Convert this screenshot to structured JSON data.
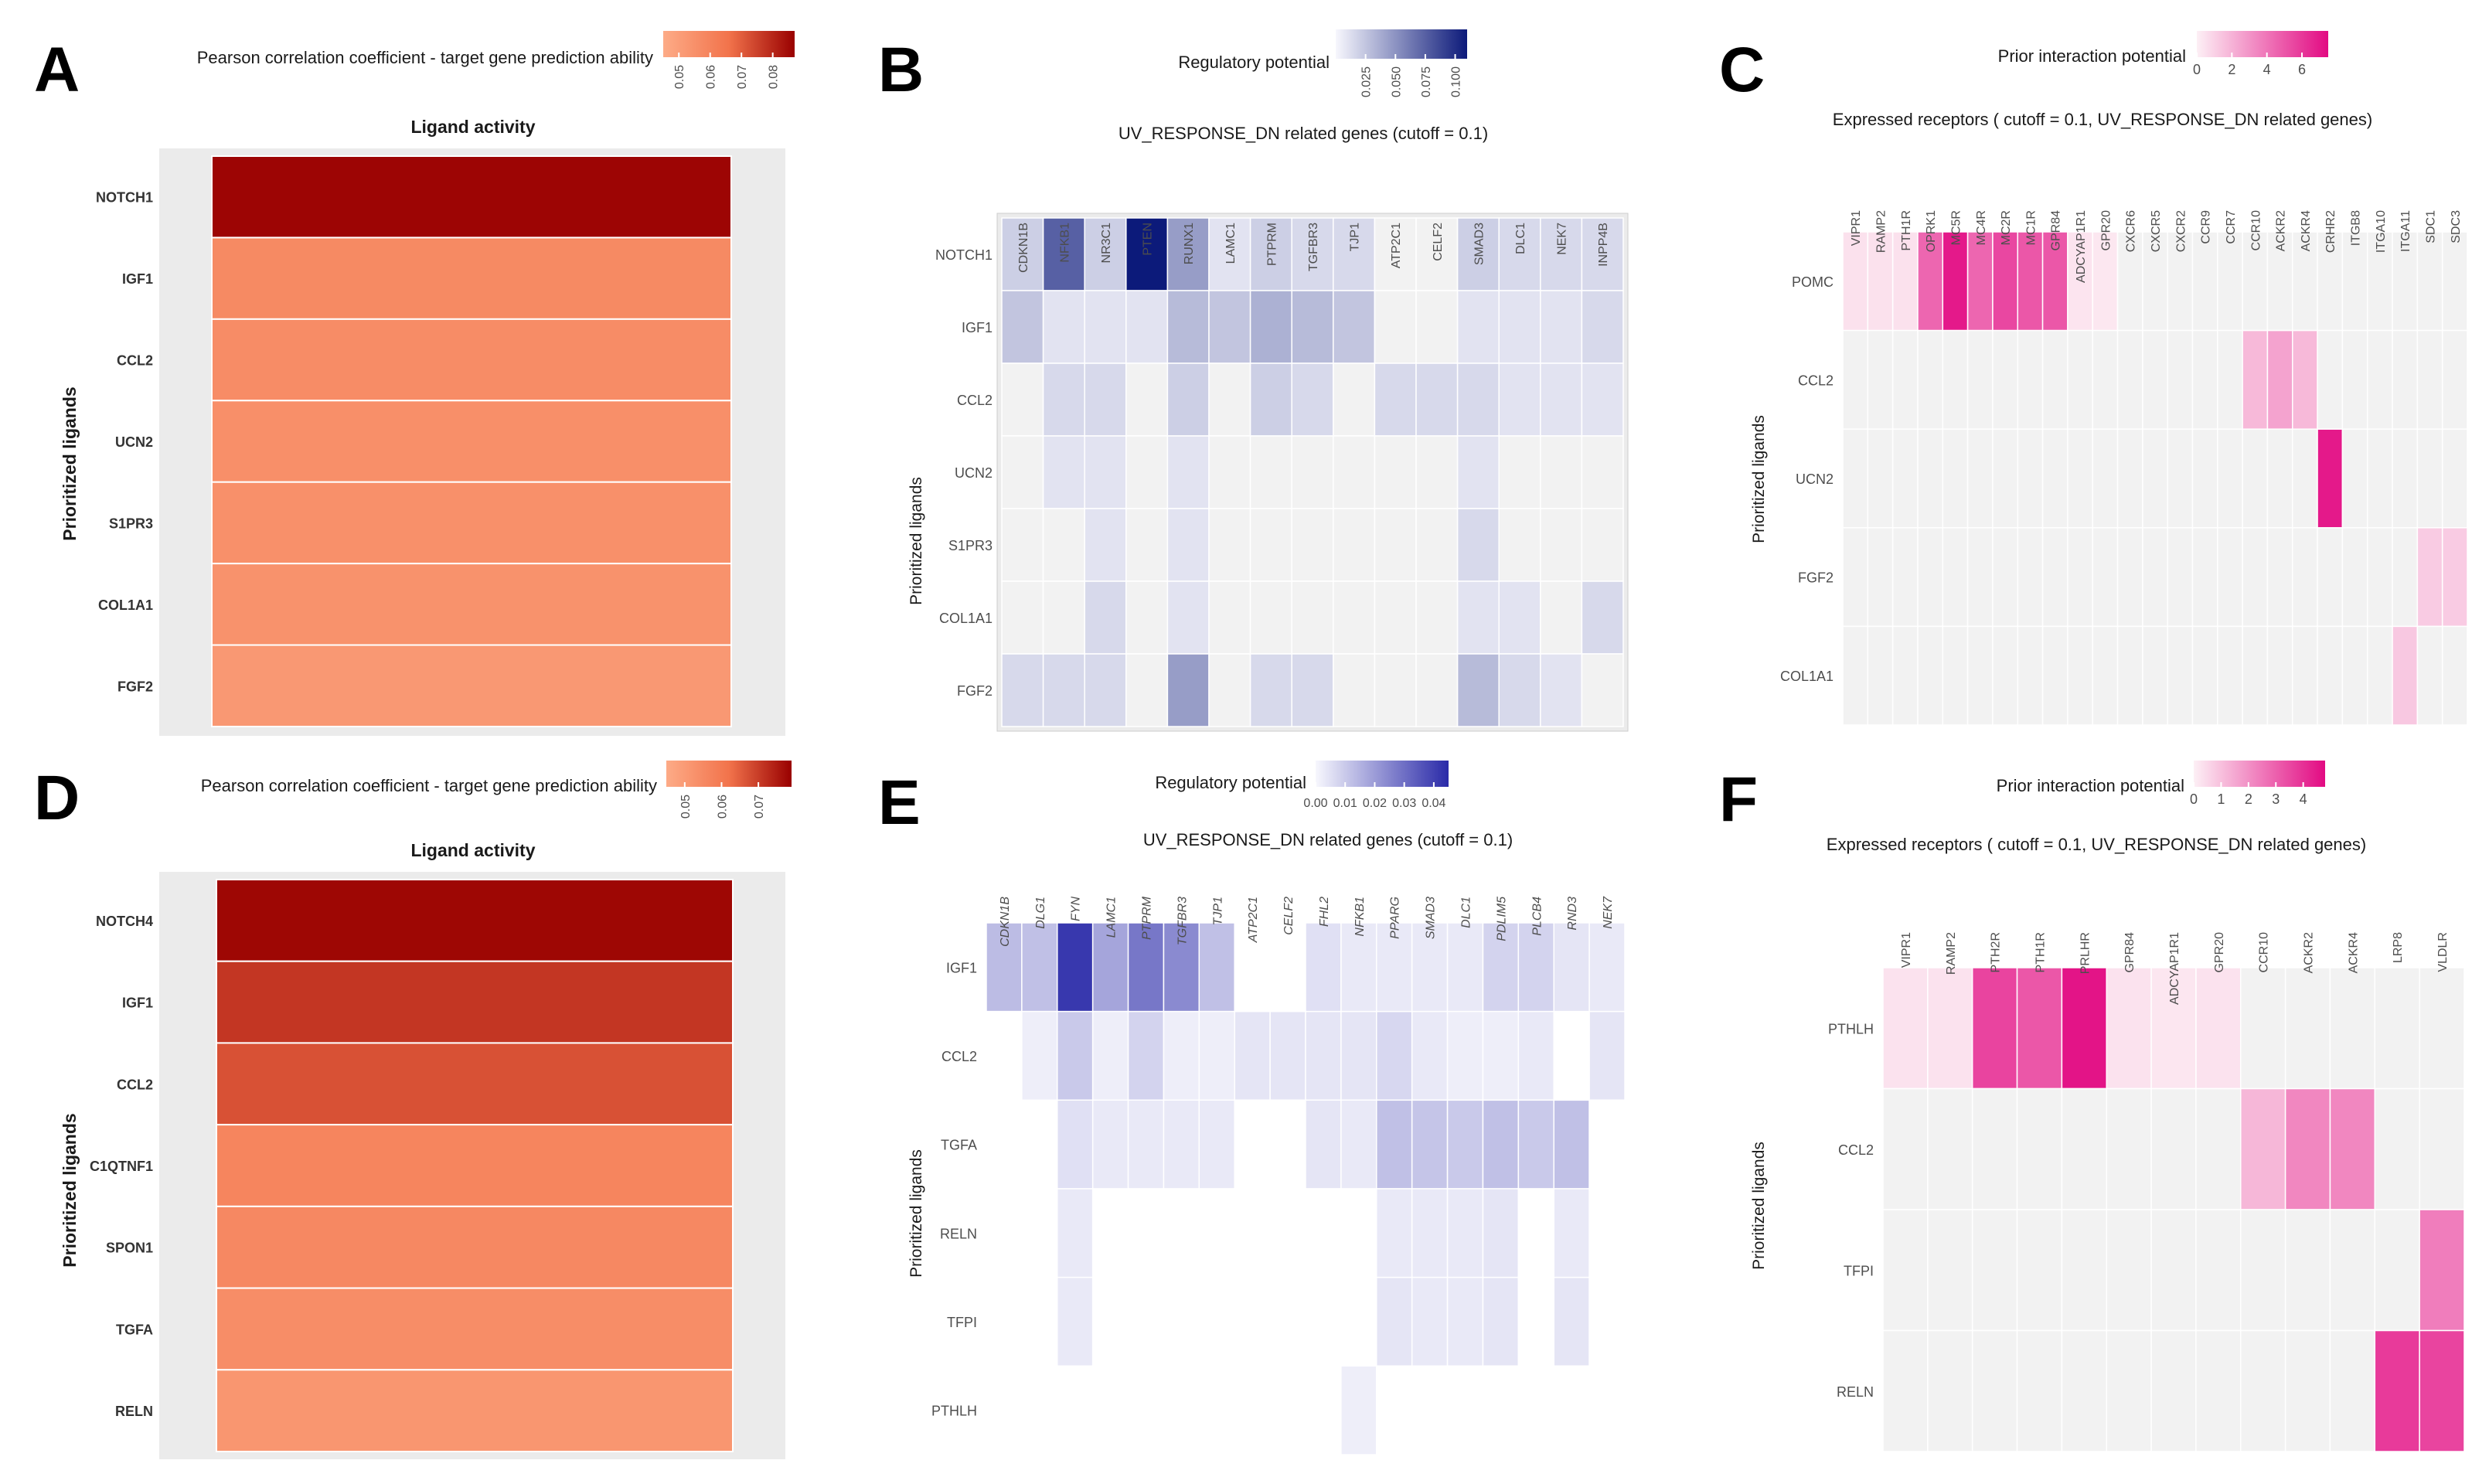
{
  "figure": {
    "panel_letters": [
      "A",
      "B",
      "C",
      "D",
      "E",
      "F"
    ]
  },
  "chart_data": [
    {
      "panel": "A",
      "type": "heatmap",
      "title": "Ligand activity",
      "ylabel": "Prioritized ligands",
      "legend_title": "Pearson correlation coefficient - target gene prediction ability",
      "legend_ticks": [
        "0.05",
        "0.06",
        "0.07",
        "0.08"
      ],
      "legend_range": [
        0.045,
        0.087
      ],
      "colors": {
        "low": "#fdab87",
        "mid": "#f2734b",
        "high": "#990000",
        "panel_bg": "#ebebeb"
      },
      "rows": [
        "NOTCH1",
        "IGF1",
        "CCL2",
        "UCN2",
        "S1PR3",
        "COL1A1",
        "FGF2"
      ],
      "values": [
        0.086,
        0.0575,
        0.0565,
        0.0555,
        0.055,
        0.0545,
        0.052
      ]
    },
    {
      "panel": "B",
      "type": "heatmap",
      "title": "UV_RESPONSE_DN related genes (cutoff = 0.1)",
      "ylabel": "Prioritized ligands",
      "legend_title": "Regulatory potential",
      "legend_ticks": [
        "0.025",
        "0.050",
        "0.075",
        "0.100"
      ],
      "legend_range": [
        0,
        0.11
      ],
      "colors": {
        "low": "#f7f7fd",
        "high": "#0c1a7a",
        "na": "#f2f2f2"
      },
      "columns": [
        "CDKN1B",
        "NFKB1",
        "NR3C1",
        "PTEN",
        "RUNX1",
        "LAMC1",
        "PTPRM",
        "TGFBR3",
        "TJP1",
        "ATP2C1",
        "CELF2",
        "SMAD3",
        "DLC1",
        "NEK7",
        "INPP4B"
      ],
      "rows": [
        "NOTCH1",
        "IGF1",
        "CCL2",
        "UCN2",
        "S1PR3",
        "COL1A1",
        "FGF2"
      ],
      "values": [
        [
          0.02,
          0.075,
          0.02,
          0.11,
          0.045,
          0.01,
          0.02,
          0.015,
          0.015,
          0,
          0,
          0.02,
          0.015,
          0.015,
          0.015
        ],
        [
          0.025,
          0.01,
          0.01,
          0.01,
          0.03,
          0.025,
          0.035,
          0.03,
          0.025,
          0,
          0,
          0.01,
          0.01,
          0.01,
          0.015
        ],
        [
          0,
          0.015,
          0.015,
          0,
          0.02,
          0,
          0.02,
          0.015,
          0,
          0.015,
          0.015,
          0.015,
          0.01,
          0.01,
          0.01
        ],
        [
          0,
          0.01,
          0.01,
          0,
          0.01,
          0,
          0,
          0,
          0,
          0,
          0,
          0.01,
          0,
          0,
          0
        ],
        [
          0,
          0,
          0.01,
          0,
          0.01,
          0,
          0,
          0,
          0,
          0,
          0,
          0.015,
          0,
          0,
          0
        ],
        [
          0,
          0,
          0.015,
          0,
          0.01,
          0,
          0,
          0,
          0,
          0,
          0,
          0.01,
          0.01,
          0,
          0.015
        ],
        [
          0.015,
          0.015,
          0.015,
          0,
          0.045,
          0,
          0.015,
          0.015,
          0,
          0,
          0,
          0.03,
          0.015,
          0.01,
          0
        ]
      ]
    },
    {
      "panel": "C",
      "type": "heatmap",
      "title": "Expressed receptors ( cutoff = 0.1, UV_RESPONSE_DN related genes)",
      "ylabel": "Prioritized ligands",
      "legend_title": "Prior interaction potential",
      "legend_ticks": [
        "0",
        "2",
        "4",
        "6"
      ],
      "legend_range": [
        0,
        7.5
      ],
      "colors": {
        "low": "#fdf0f5",
        "high": "#e20a82",
        "na": "#f2f2f2"
      },
      "columns": [
        "VIPR1",
        "RAMP2",
        "PTH1R",
        "OPRK1",
        "MC5R",
        "MC4R",
        "MC2R",
        "MC1R",
        "GPR84",
        "ADCYAP1R1",
        "GPR20",
        "CXCR6",
        "CXCR5",
        "CXCR2",
        "CCR9",
        "CCR7",
        "CCR10",
        "ACKR2",
        "ACKR4",
        "CRHR2",
        "ITGB8",
        "ITGA10",
        "ITGA11",
        "SDC1",
        "SDC3"
      ],
      "rows": [
        "POMC",
        "CCL2",
        "UCN2",
        "FGF2",
        "COL1A1"
      ],
      "values": [
        [
          0.5,
          0.5,
          0.5,
          4.5,
          7.0,
          4.5,
          5.5,
          5.0,
          5.0,
          0.4,
          0.3,
          0,
          0,
          0,
          0,
          0,
          0,
          0,
          0,
          0,
          0,
          0,
          0,
          0,
          0
        ],
        [
          0,
          0,
          0,
          0,
          0,
          0,
          0,
          0,
          0,
          0,
          0,
          0,
          0,
          0,
          0,
          0,
          1.8,
          2.5,
          1.8,
          0,
          0,
          0,
          0,
          0,
          0
        ],
        [
          0,
          0,
          0,
          0,
          0,
          0,
          0,
          0,
          0,
          0,
          0,
          0,
          0,
          0,
          0,
          0,
          0,
          0,
          0,
          7.0,
          0,
          0,
          0,
          0,
          0
        ],
        [
          0,
          0,
          0,
          0,
          0,
          0,
          0,
          0,
          0,
          0,
          0,
          0,
          0,
          0,
          0,
          0,
          0,
          0,
          0,
          0,
          0,
          0,
          0,
          1.2,
          1.2
        ],
        [
          0,
          0,
          0,
          0,
          0,
          0,
          0,
          0,
          0,
          0,
          0,
          0,
          0,
          0,
          0,
          0,
          0,
          0,
          0,
          0,
          0,
          0,
          1.3,
          0,
          0
        ]
      ]
    },
    {
      "panel": "D",
      "type": "heatmap",
      "title": "Ligand activity",
      "ylabel": "Prioritized ligands",
      "legend_title": "Pearson correlation coefficient - target gene prediction ability",
      "legend_ticks": [
        "0.05",
        "0.06",
        "0.07"
      ],
      "legend_range": [
        0.045,
        0.079
      ],
      "colors": {
        "low": "#fdab87",
        "mid": "#f2734b",
        "high": "#990000",
        "panel_bg": "#ebebeb"
      },
      "rows": [
        "NOTCH4",
        "IGF1",
        "CCL2",
        "C1QTNF1",
        "SPON1",
        "TGFA",
        "RELN"
      ],
      "values": [
        0.078,
        0.071,
        0.067,
        0.0565,
        0.0555,
        0.054,
        0.0515
      ]
    },
    {
      "panel": "E",
      "type": "heatmap",
      "title": "UV_RESPONSE_DN related genes (cutoff = 0.1)",
      "ylabel": "Prioritized ligands",
      "legend_title": "Regulatory potential",
      "legend_ticks": [
        "0.00",
        "0.01",
        "0.02",
        "0.03",
        "0.04"
      ],
      "legend_range": [
        0,
        0.045
      ],
      "colors": {
        "low": "#f7f7fd",
        "high": "#2a2aa8",
        "na": "#ffffff"
      },
      "columns": [
        "CDKN1B",
        "DLG1",
        "FYN",
        "LAMC1",
        "PTPRM",
        "TGFBR3",
        "TJP1",
        "ATP2C1",
        "CELF2",
        "FHL2",
        "NFKB1",
        "PPARG",
        "SMAD3",
        "DLC1",
        "PDLIM5",
        "PLCB4",
        "RND3",
        "NEK7"
      ],
      "rows": [
        "IGF1",
        "CCL2",
        "TGFA",
        "RELN",
        "TFPI",
        "PTHLH"
      ],
      "values": [
        [
          0.013,
          0.012,
          0.042,
          0.018,
          0.028,
          0.024,
          0.012,
          0,
          0,
          0.005,
          0.003,
          0.003,
          0.003,
          0.003,
          0.008,
          0.008,
          0.004,
          0.003
        ],
        [
          0,
          0.002,
          0.01,
          0.002,
          0.008,
          0.002,
          0.002,
          0.004,
          0.004,
          0.004,
          0.004,
          0.007,
          0.003,
          0.002,
          0.002,
          0.003,
          0,
          0.004
        ],
        [
          0,
          0,
          0.005,
          0.003,
          0.003,
          0.003,
          0.003,
          0,
          0,
          0.004,
          0.003,
          0.012,
          0.011,
          0.01,
          0.012,
          0.01,
          0.012,
          0
        ],
        [
          0,
          0,
          0.003,
          0,
          0,
          0,
          0,
          0,
          0,
          0,
          0,
          0.003,
          0.003,
          0.003,
          0.004,
          0,
          0.003,
          0
        ],
        [
          0,
          0,
          0.003,
          0,
          0,
          0,
          0,
          0,
          0,
          0,
          0,
          0.004,
          0.003,
          0.003,
          0.004,
          0,
          0.004,
          0
        ],
        [
          0,
          0,
          0,
          0,
          0,
          0,
          0,
          0,
          0,
          0,
          0.002,
          0,
          0,
          0,
          0,
          0,
          0,
          0
        ]
      ]
    },
    {
      "panel": "F",
      "type": "heatmap",
      "title": "Expressed receptors ( cutoff = 0.1, UV_RESPONSE_DN related genes)",
      "ylabel": "Prioritized ligands",
      "legend_title": "Prior interaction potential",
      "legend_ticks": [
        "0",
        "1",
        "2",
        "3",
        "4"
      ],
      "legend_range": [
        0,
        4.8
      ],
      "colors": {
        "low": "#fdf0f5",
        "high": "#e20a82",
        "na": "#f2f2f2"
      },
      "columns": [
        "VIPR1",
        "RAMP2",
        "PTH2R",
        "PTH1R",
        "PRLHR",
        "GPR84",
        "ADCYAP1R1",
        "GPR20",
        "CCR10",
        "ACKR2",
        "ACKR4",
        "LRP8",
        "VLDLR"
      ],
      "rows": [
        "PTHLH",
        "CCL2",
        "TFPI",
        "RELN"
      ],
      "values": [
        [
          0.3,
          0.3,
          3.6,
          3.2,
          4.6,
          0.3,
          0.2,
          0.3,
          0,
          0,
          0,
          0,
          0
        ],
        [
          0,
          0,
          0,
          0,
          0,
          0,
          0,
          0,
          1.2,
          2.2,
          2.2,
          0,
          0
        ],
        [
          0,
          0,
          0,
          0,
          0,
          0,
          0,
          0,
          0,
          0,
          0,
          0,
          2.4
        ],
        [
          0,
          0,
          0,
          0,
          0,
          0,
          0,
          0,
          0,
          0,
          0,
          3.8,
          3.6
        ]
      ]
    }
  ]
}
